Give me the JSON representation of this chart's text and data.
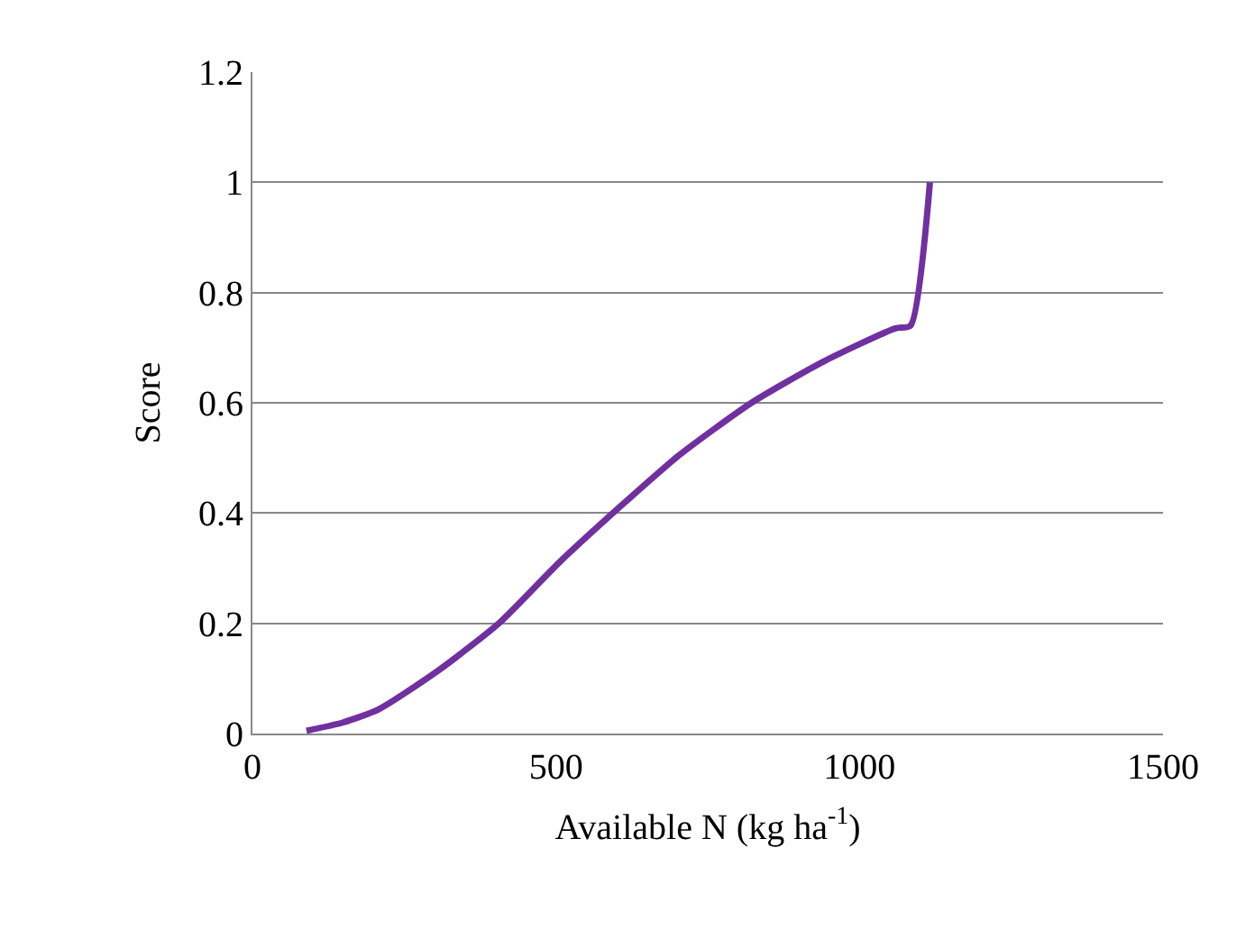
{
  "chart_data": {
    "type": "line",
    "xlabel": "Available N (kg ha$^{-1}$)",
    "ylabel": "Score",
    "x": [
      89,
      149,
      208,
      307,
      406,
      505,
      604,
      703,
      822,
      941,
      1059,
      1084,
      1116
    ],
    "series": [
      {
        "color": "#7030a0",
        "values": [
          0.005,
          0.02,
          0.044,
          0.115,
          0.2,
          0.31,
          0.41,
          0.505,
          0.6,
          0.675,
          0.735,
          0.74,
          1.0
        ]
      }
    ],
    "xlim": [
      0,
      1500
    ],
    "xticks": [
      0,
      500,
      1000,
      1500
    ],
    "ylim": [
      0,
      1.2
    ],
    "yticks": [
      0,
      0.2,
      0.4,
      0.6,
      0.8,
      1,
      1.2
    ],
    "grid": "y",
    "marker": "none",
    "line_style": "solid"
  }
}
